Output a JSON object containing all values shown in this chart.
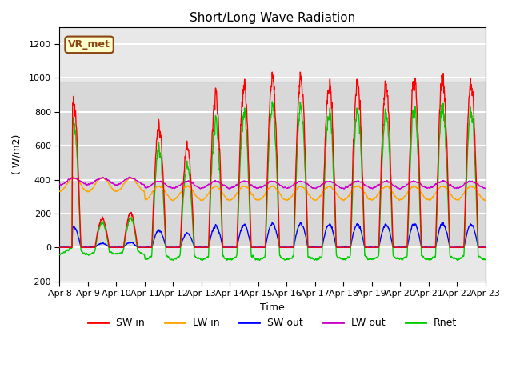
{
  "title": "Short/Long Wave Radiation",
  "xlabel": "Time",
  "ylabel": "( W/m2)",
  "ylim": [
    -200,
    1300
  ],
  "yticks": [
    -200,
    0,
    200,
    400,
    600,
    800,
    1000,
    1200
  ],
  "annotation": "VR_met",
  "series": {
    "SW_in": {
      "color": "#ff0000",
      "label": "SW in"
    },
    "LW_in": {
      "color": "#ffa500",
      "label": "LW in"
    },
    "SW_out": {
      "color": "#0000ff",
      "label": "SW out"
    },
    "LW_out": {
      "color": "#cc00cc",
      "label": "LW out"
    },
    "Rnet": {
      "color": "#00cc00",
      "label": "Rnet"
    }
  },
  "xlim_days": [
    0,
    15
  ],
  "start_day_label": "Apr 8",
  "day_labels": [
    "Apr 8",
    "Apr 9",
    "Apr 10",
    "Apr 11",
    "Apr 12",
    "Apr 13",
    "Apr 14",
    "Apr 15",
    "Apr 16",
    "Apr 17",
    "Apr 18",
    "Apr 19",
    "Apr 20",
    "Apr 21",
    "Apr 22",
    "Apr 23"
  ],
  "background_color": "#ffffff",
  "plot_bg_color": "#e8e8e8",
  "grid_color": "#ffffff",
  "legend_items": [
    "SW in",
    "LW in",
    "SW out",
    "LW out",
    "Rnet"
  ],
  "legend_colors": [
    "#ff0000",
    "#ffa500",
    "#0000ff",
    "#cc00cc",
    "#00cc00"
  ]
}
